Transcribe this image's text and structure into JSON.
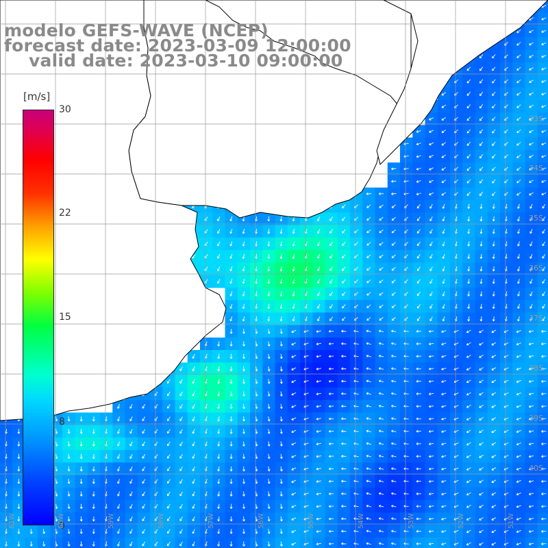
{
  "title": {
    "line1": "modelo GEFS-WAVE (NCEP)",
    "line2": "forecast date: 2023-03-09 12:00:00",
    "line3": "valid date: 2023-03-10 09:00:00"
  },
  "colorbar": {
    "unit": "[m/s]",
    "ticks": [
      "30",
      "22",
      "15",
      "8",
      "0"
    ],
    "min": 0,
    "max": 30,
    "colors": {
      "low": "#0000ff",
      "mid_low": "#00d8ff",
      "mid": "#00ff40",
      "mid_high": "#ffff00",
      "high": "#ff0000",
      "max": "#c8007a"
    }
  },
  "latitude_labels": [
    "33S",
    "34S",
    "35S",
    "36S",
    "37S",
    "38S",
    "39S",
    "40S"
  ],
  "longitude_labels": [
    "61W",
    "60W",
    "59W",
    "58W",
    "57W",
    "56W",
    "55W",
    "54W",
    "53W",
    "52W",
    "51W"
  ],
  "map_colors": {
    "land": "#ffffff",
    "coast": "#000000",
    "grid": "#999999",
    "wind_arrow": "#ffffff"
  }
}
